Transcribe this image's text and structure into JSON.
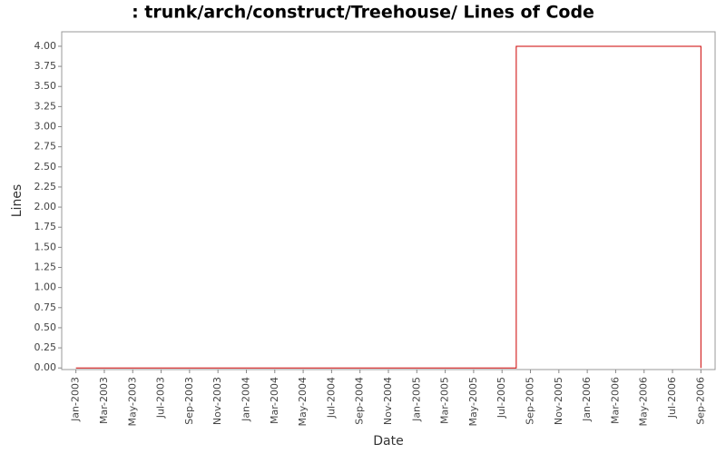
{
  "chart_data": {
    "type": "line",
    "title": ": trunk/arch/construct/Treehouse/ Lines of Code",
    "x_label": "Date",
    "y_label": "Lines",
    "x": [
      "2003-01",
      "2005-08",
      "2005-08",
      "2006-09",
      "2006-09"
    ],
    "series": [
      {
        "name": "Lines",
        "color": "#cc0000",
        "values": [
          0,
          0,
          4,
          4,
          0
        ]
      }
    ],
    "xlim": [
      "2002-12",
      "2006-10"
    ],
    "xticks": [
      {
        "value": "2003-01",
        "label": "Jan-2003"
      },
      {
        "value": "2003-03",
        "label": "Mar-2003"
      },
      {
        "value": "2003-05",
        "label": "May-2003"
      },
      {
        "value": "2003-07",
        "label": "Jul-2003"
      },
      {
        "value": "2003-09",
        "label": "Sep-2003"
      },
      {
        "value": "2003-11",
        "label": "Nov-2003"
      },
      {
        "value": "2004-01",
        "label": "Jan-2004"
      },
      {
        "value": "2004-03",
        "label": "Mar-2004"
      },
      {
        "value": "2004-05",
        "label": "May-2004"
      },
      {
        "value": "2004-07",
        "label": "Jul-2004"
      },
      {
        "value": "2004-09",
        "label": "Sep-2004"
      },
      {
        "value": "2004-11",
        "label": "Nov-2004"
      },
      {
        "value": "2005-01",
        "label": "Jan-2005"
      },
      {
        "value": "2005-03",
        "label": "Mar-2005"
      },
      {
        "value": "2005-05",
        "label": "May-2005"
      },
      {
        "value": "2005-07",
        "label": "Jul-2005"
      },
      {
        "value": "2005-09",
        "label": "Sep-2005"
      },
      {
        "value": "2005-11",
        "label": "Nov-2005"
      },
      {
        "value": "2006-01",
        "label": "Jan-2006"
      },
      {
        "value": "2006-03",
        "label": "Mar-2006"
      },
      {
        "value": "2006-05",
        "label": "May-2006"
      },
      {
        "value": "2006-07",
        "label": "Jul-2006"
      },
      {
        "value": "2006-09",
        "label": "Sep-2006"
      }
    ],
    "ylim": [
      -0.02,
      4.18
    ],
    "yticks": [
      {
        "value": 0,
        "label": "0.00"
      },
      {
        "value": 0.25,
        "label": "0.25"
      },
      {
        "value": 0.5,
        "label": "0.50"
      },
      {
        "value": 0.75,
        "label": "0.75"
      },
      {
        "value": 1,
        "label": "1.00"
      },
      {
        "value": 1.25,
        "label": "1.25"
      },
      {
        "value": 1.5,
        "label": "1.50"
      },
      {
        "value": 1.75,
        "label": "1.75"
      },
      {
        "value": 2,
        "label": "2.00"
      },
      {
        "value": 2.25,
        "label": "2.25"
      },
      {
        "value": 2.5,
        "label": "2.50"
      },
      {
        "value": 2.75,
        "label": "2.75"
      },
      {
        "value": 3,
        "label": "3.00"
      },
      {
        "value": 3.25,
        "label": "3.25"
      },
      {
        "value": 3.5,
        "label": "3.50"
      },
      {
        "value": 3.75,
        "label": "3.75"
      },
      {
        "value": 4,
        "label": "4.00"
      }
    ],
    "grid": false
  }
}
